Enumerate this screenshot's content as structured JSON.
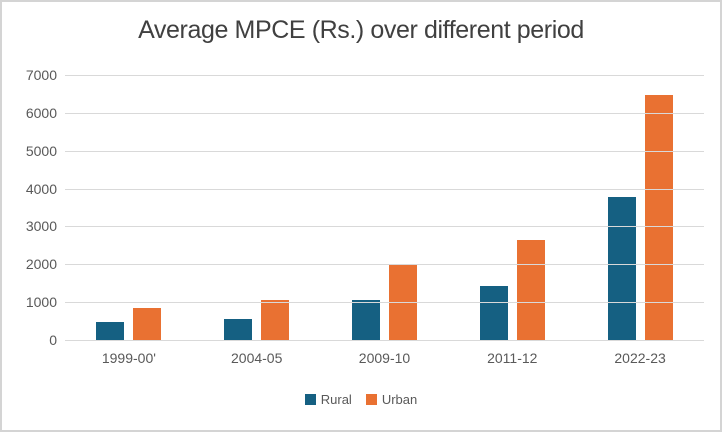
{
  "chart_data": {
    "type": "bar",
    "title": "Average MPCE (Rs.) over different period",
    "categories": [
      "1999-00'",
      "2004-05",
      "2009-10",
      "2011-12",
      "2022-23"
    ],
    "series": [
      {
        "name": "Rural",
        "color": "#156082",
        "values": [
          486,
          559,
          1054,
          1430,
          3773
        ]
      },
      {
        "name": "Urban",
        "color": "#E97132",
        "values": [
          855,
          1052,
          1984,
          2630,
          6459
        ]
      }
    ],
    "xlabel": "",
    "ylabel": "",
    "ylim": [
      0,
      7000
    ],
    "yticks": [
      0,
      1000,
      2000,
      3000,
      4000,
      5000,
      6000,
      7000
    ],
    "grid": true,
    "legend_position": "bottom"
  },
  "colors": {
    "rural_bar": "#156082",
    "urban_bar": "#E97132",
    "gridline": "#d9d9d9",
    "axis_text": "#595959",
    "title_text": "#404040",
    "frame_border": "#d4d4d4",
    "background": "#ffffff"
  }
}
